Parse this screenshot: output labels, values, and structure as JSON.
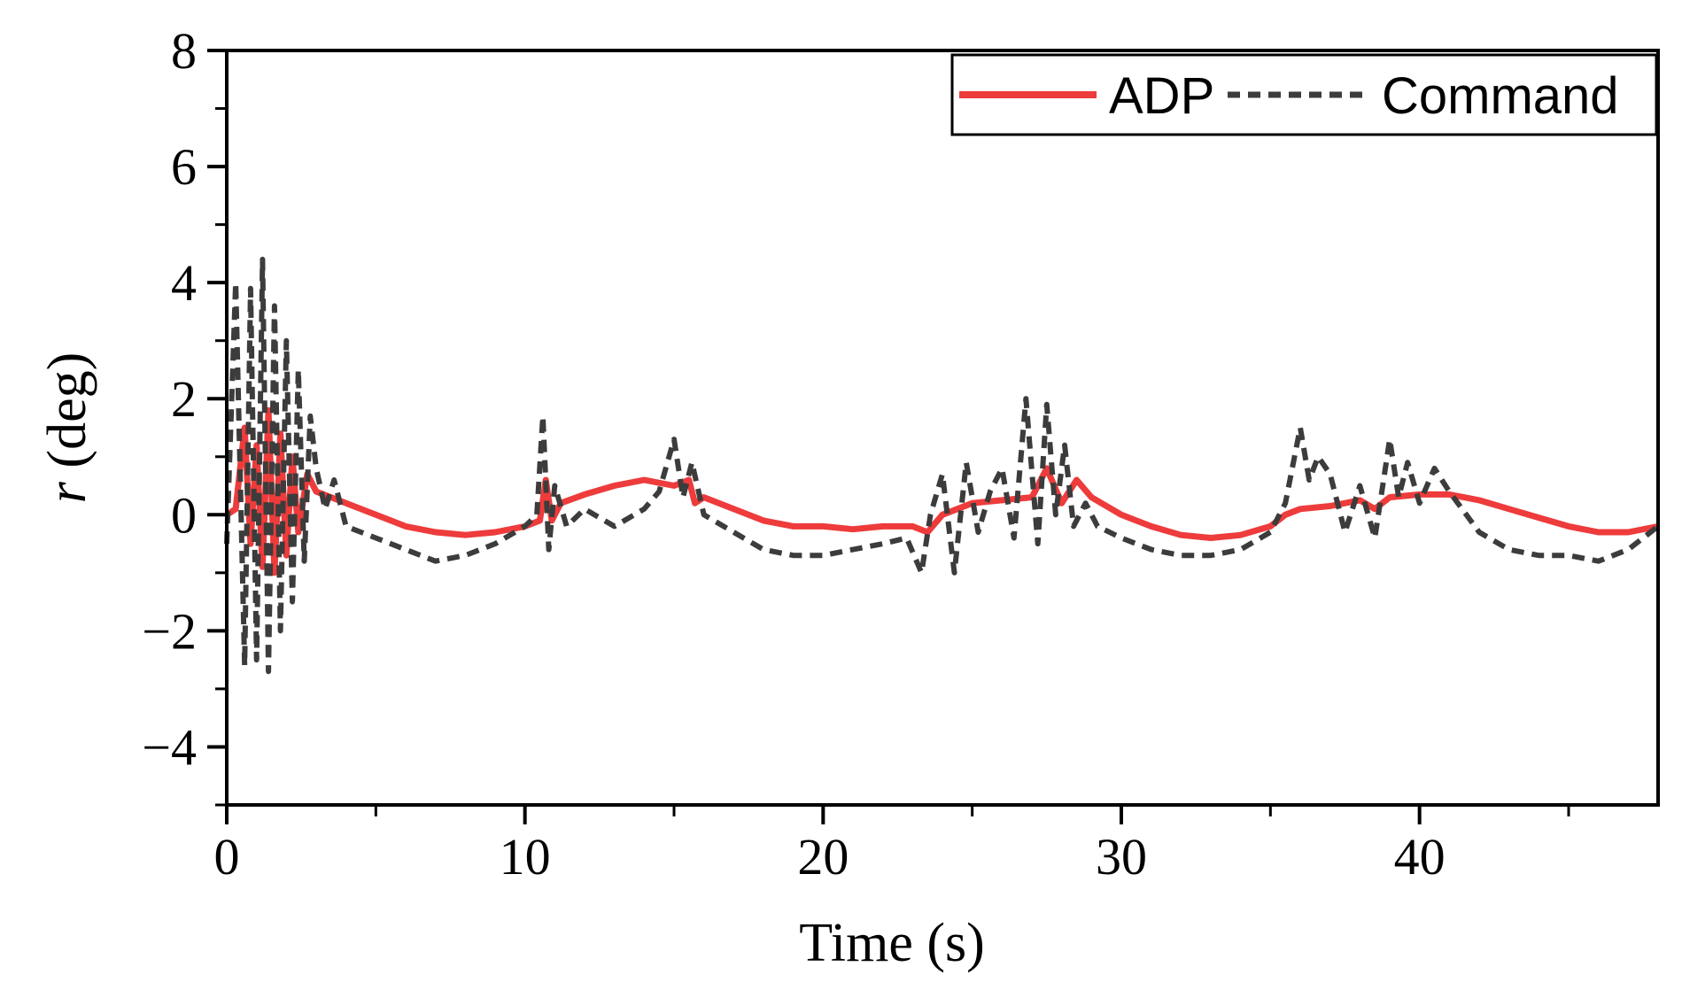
{
  "chart_data": {
    "type": "line",
    "title": "",
    "xlabel": "Time (s)",
    "ylabel_var": "r",
    "ylabel_unit": " (deg)",
    "xlim": [
      0,
      48
    ],
    "ylim": [
      -5,
      8
    ],
    "xticks": [
      0,
      10,
      20,
      30,
      40
    ],
    "xticks_minor": [
      5,
      15,
      25,
      35,
      45
    ],
    "yticks": [
      8,
      6,
      4,
      2,
      0,
      -2,
      -4
    ],
    "ytick_labels": [
      "8",
      "6",
      "4",
      "2",
      "0",
      "−2",
      "−4"
    ],
    "yticks_minor": [
      7,
      5,
      3,
      1,
      -1,
      -3,
      -5
    ],
    "legend_position": "top-right",
    "colors": {
      "adp": "#ee3b3b",
      "command": "#3c3c3c"
    },
    "series": [
      {
        "name": "ADP",
        "style": "solid",
        "x": [
          0,
          0.3,
          0.6,
          0.8,
          1.0,
          1.2,
          1.4,
          1.6,
          1.8,
          2.0,
          2.2,
          2.4,
          2.7,
          3.0,
          3.5,
          4,
          5,
          6,
          7,
          8,
          9,
          10,
          10.5,
          10.7,
          10.9,
          11.2,
          12,
          13,
          14,
          15,
          15.5,
          15.7,
          16,
          17,
          18,
          19,
          20,
          21,
          22,
          23,
          23.5,
          24,
          24.5,
          25,
          26,
          27,
          27.5,
          28,
          28.5,
          29,
          30,
          31,
          32,
          33,
          34,
          35,
          35.5,
          36,
          37,
          38,
          38.5,
          39,
          40,
          41,
          42,
          43,
          44,
          45,
          46,
          47,
          48
        ],
        "y": [
          0.0,
          0.1,
          1.5,
          -0.5,
          1.2,
          -0.9,
          1.8,
          -1.0,
          1.4,
          -0.7,
          1.0,
          -0.3,
          0.7,
          0.4,
          0.3,
          0.2,
          0.0,
          -0.2,
          -0.3,
          -0.35,
          -0.3,
          -0.2,
          -0.1,
          0.6,
          -0.1,
          0.2,
          0.35,
          0.5,
          0.6,
          0.5,
          0.6,
          0.2,
          0.3,
          0.1,
          -0.1,
          -0.2,
          -0.2,
          -0.25,
          -0.2,
          -0.2,
          -0.3,
          0.0,
          0.1,
          0.2,
          0.25,
          0.3,
          0.8,
          0.2,
          0.6,
          0.3,
          0.0,
          -0.2,
          -0.35,
          -0.4,
          -0.35,
          -0.2,
          0.0,
          0.1,
          0.15,
          0.25,
          0.1,
          0.3,
          0.35,
          0.35,
          0.25,
          0.1,
          -0.05,
          -0.2,
          -0.3,
          -0.3,
          -0.2
        ]
      },
      {
        "name": "Command",
        "style": "dashed",
        "x": [
          0,
          0.3,
          0.6,
          0.8,
          1.0,
          1.2,
          1.4,
          1.6,
          1.8,
          2.0,
          2.2,
          2.4,
          2.6,
          2.8,
          3.0,
          3.3,
          3.6,
          4,
          5,
          6,
          7,
          8,
          9,
          10,
          10.4,
          10.6,
          10.8,
          11.0,
          11.4,
          12,
          13,
          14,
          14.5,
          15,
          15.3,
          15.6,
          16,
          17,
          18,
          19,
          20,
          21,
          22,
          22.8,
          23.3,
          23.6,
          24,
          24.4,
          24.8,
          25.2,
          25.6,
          26,
          26.4,
          26.8,
          27.2,
          27.5,
          27.8,
          28.1,
          28.4,
          28.8,
          29.2,
          30,
          31,
          32,
          33,
          34,
          35,
          35.5,
          36,
          36.3,
          36.6,
          37,
          37.5,
          38,
          38.5,
          39,
          39.3,
          39.6,
          40,
          40.5,
          41,
          42,
          43,
          44,
          45,
          46,
          47,
          48
        ],
        "y": [
          -0.5,
          4.0,
          -2.6,
          3.9,
          -2.5,
          4.4,
          -2.7,
          3.6,
          -2.0,
          3.0,
          -1.5,
          2.5,
          -0.8,
          1.7,
          0.8,
          0.1,
          0.6,
          -0.2,
          -0.4,
          -0.6,
          -0.8,
          -0.7,
          -0.5,
          -0.2,
          0.0,
          1.7,
          -0.6,
          0.5,
          -0.2,
          0.1,
          -0.2,
          0.1,
          0.4,
          1.3,
          0.3,
          0.9,
          0.0,
          -0.3,
          -0.6,
          -0.7,
          -0.7,
          -0.6,
          -0.5,
          -0.4,
          -1.0,
          0.0,
          0.7,
          -1.0,
          0.9,
          -0.3,
          0.4,
          0.8,
          -0.4,
          2.0,
          -0.5,
          1.9,
          0.0,
          1.2,
          -0.2,
          0.2,
          -0.2,
          -0.4,
          -0.6,
          -0.7,
          -0.7,
          -0.6,
          -0.3,
          0.2,
          1.5,
          0.6,
          1.0,
          0.7,
          -0.3,
          0.5,
          -0.4,
          1.3,
          0.3,
          0.9,
          0.2,
          0.8,
          0.4,
          -0.3,
          -0.6,
          -0.7,
          -0.7,
          -0.8,
          -0.6,
          -0.2
        ]
      }
    ]
  }
}
